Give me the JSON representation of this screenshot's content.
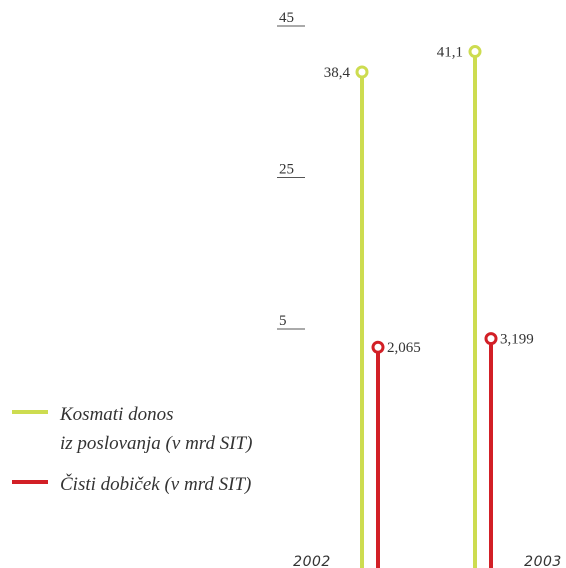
{
  "chart_data": {
    "type": "bar",
    "categories": [
      "2002",
      "2003"
    ],
    "series": [
      {
        "name": "Kosmati donos iz poslovanja (v mrd SIT)",
        "legend_lines": [
          "Kosmati donos",
          "iz poslovanja (v mrd SIT)"
        ],
        "color": "#cddc50",
        "values": [
          38.4,
          41.1
        ],
        "labels": [
          "38,4",
          "41,1"
        ]
      },
      {
        "name": "Čisti dobiček (v mrd SIT)",
        "legend_lines": [
          "Čisti dobiček (v mrd SIT)"
        ],
        "color": "#d21f26",
        "values": [
          2.065,
          3.199
        ],
        "labels": [
          "2,065",
          "3,199"
        ]
      }
    ],
    "yticks": [
      45,
      25,
      5
    ],
    "ytick_labels": [
      "45",
      "25",
      "5"
    ],
    "ylim": [
      -20,
      45
    ],
    "style": "lollipop",
    "legend_position": "left"
  }
}
